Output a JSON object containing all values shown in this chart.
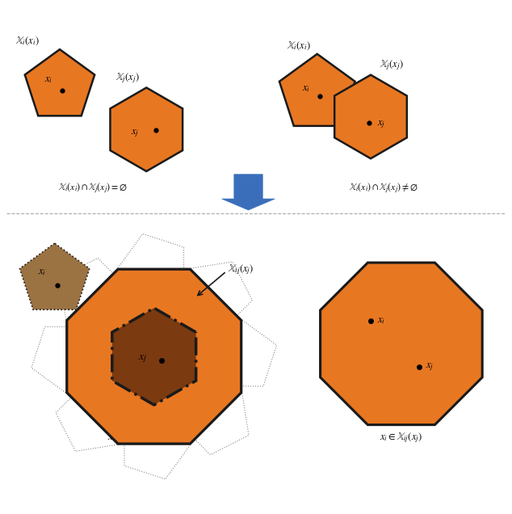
{
  "orange": "#E87722",
  "dark_orange": "#7B3A10",
  "brown": "#9B7242",
  "outline_color": "#1a1a1a",
  "white": "#FFFFFF",
  "arrow_blue": "#3A6EBB",
  "gray": "#888888",
  "text_color": "#000000",
  "fig_width": 6.34,
  "fig_height": 6.36,
  "dpi": 100
}
